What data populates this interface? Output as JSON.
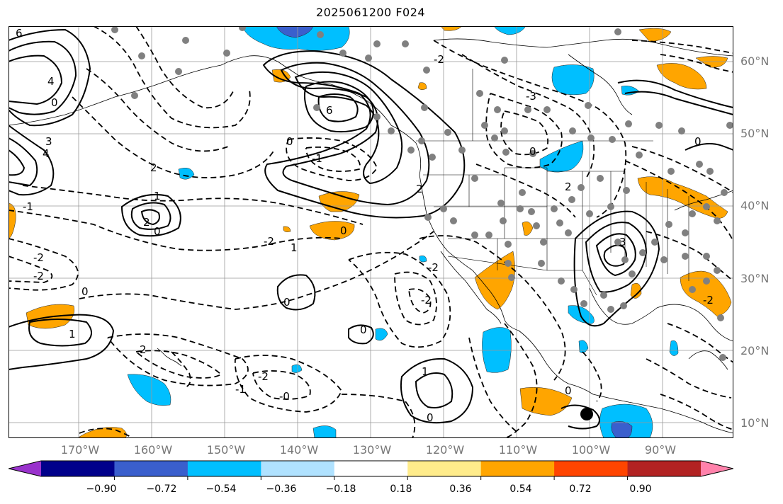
{
  "title": "2025061200 F024",
  "lat_labels": [
    "60°N",
    "50°N",
    "40°N",
    "30°N",
    "20°N",
    "10°N"
  ],
  "lon_labels": [
    "170°W",
    "160°W",
    "150°W",
    "140°W",
    "130°W",
    "120°W",
    "110°W",
    "100°W",
    "90°W"
  ],
  "colorbar": {
    "colors": [
      "#9932cc",
      "#00008b",
      "#3a5fcd",
      "#00bfff",
      "#b0e2ff",
      "#ffffff",
      "#ffec8b",
      "#ffa500",
      "#ff4500",
      "#b22222",
      "#ff82ab"
    ],
    "tick_labels": [
      "−0.90",
      "−0.72",
      "−0.54",
      "−0.36",
      "−0.18",
      "0.18",
      "0.36",
      "0.54",
      "0.72",
      "0.90"
    ]
  },
  "contour_labels": [
    {
      "text": "6"
    },
    {
      "text": "4"
    },
    {
      "text": "0"
    },
    {
      "text": "3"
    },
    {
      "text": "4"
    },
    {
      "text": "6"
    },
    {
      "text": "0"
    },
    {
      "text": "-1"
    },
    {
      "text": "2"
    },
    {
      "text": "-2"
    },
    {
      "text": "-3"
    },
    {
      "text": "0"
    },
    {
      "text": "1"
    },
    {
      "text": "2"
    },
    {
      "text": "0"
    },
    {
      "text": "-2"
    },
    {
      "text": "-2"
    },
    {
      "text": "0"
    },
    {
      "text": "1"
    },
    {
      "text": "0"
    },
    {
      "text": "-2"
    },
    {
      "text": "-1"
    },
    {
      "text": "-0"
    },
    {
      "text": "0"
    },
    {
      "text": "-2"
    },
    {
      "text": "2"
    },
    {
      "text": "-2"
    },
    {
      "text": "0"
    },
    {
      "text": "1"
    },
    {
      "text": "0"
    },
    {
      "text": "-2"
    },
    {
      "text": "-1"
    },
    {
      "text": "1"
    },
    {
      "text": "3"
    },
    {
      "text": "0"
    },
    {
      "text": "2"
    },
    {
      "text": "0"
    },
    {
      "text": "-2"
    },
    {
      "text": "2"
    }
  ]
}
